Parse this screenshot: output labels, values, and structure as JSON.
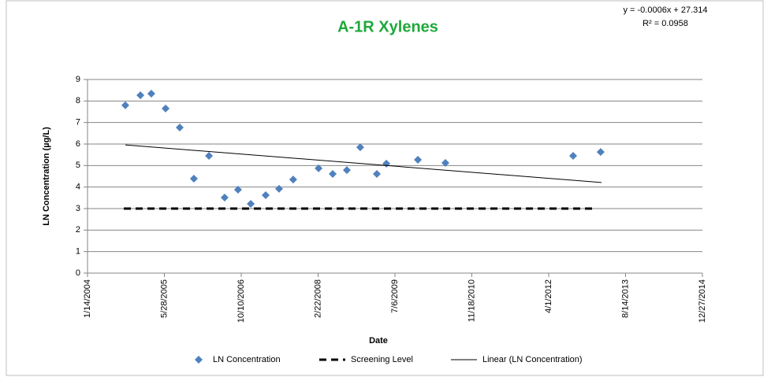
{
  "chart_data": {
    "type": "scatter",
    "title": "A-1R Xylenes",
    "annotations": [
      "y = -0.0006x + 27.314",
      "R² = 0.0958"
    ],
    "xlabel": "Date",
    "ylabel": "LN Concentration (µg/L)",
    "xlim": [
      38000,
      42000
    ],
    "xticks": [
      {
        "value": 38000,
        "label": "1/14/2004"
      },
      {
        "value": 38500,
        "label": "5/28/2005"
      },
      {
        "value": 39000,
        "label": "10/10/2006"
      },
      {
        "value": 39500,
        "label": "2/22/2008"
      },
      {
        "value": 40000,
        "label": "7/6/2009"
      },
      {
        "value": 40500,
        "label": "11/18/2010"
      },
      {
        "value": 41000,
        "label": "4/1/2012"
      },
      {
        "value": 41500,
        "label": "8/14/2013"
      },
      {
        "value": 42000,
        "label": "12/27/2014"
      }
    ],
    "ylim": [
      0,
      9
    ],
    "yticks": [
      0,
      1,
      2,
      3,
      4,
      5,
      6,
      7,
      8,
      9
    ],
    "grid": true,
    "legend": "bottom",
    "series": [
      {
        "name": "LN Concentration",
        "color": "#4f81bd",
        "style": "marker",
        "x": [
          38246,
          38344,
          38415,
          38508,
          38600,
          38692,
          38790,
          38892,
          38979,
          39062,
          39159,
          39246,
          39338,
          39503,
          39595,
          39687,
          39774,
          39882,
          39944,
          40149,
          40328,
          41159,
          41338
        ],
        "values": [
          7.8,
          8.27,
          8.34,
          7.65,
          6.77,
          4.39,
          5.45,
          3.51,
          3.88,
          3.22,
          3.62,
          3.92,
          4.35,
          4.87,
          4.61,
          4.79,
          5.85,
          4.61,
          5.09,
          5.27,
          5.12,
          5.45,
          5.63
        ]
      },
      {
        "name": "Screening Level",
        "color": "#000000",
        "style": "dashed",
        "x": [
          38236,
          41287
        ],
        "values": [
          3,
          3
        ]
      },
      {
        "name": "Linear (LN Concentration)",
        "color": "#000000",
        "style": "line",
        "x": [
          38246,
          41344
        ],
        "values": [
          5.96,
          4.21
        ]
      }
    ]
  }
}
